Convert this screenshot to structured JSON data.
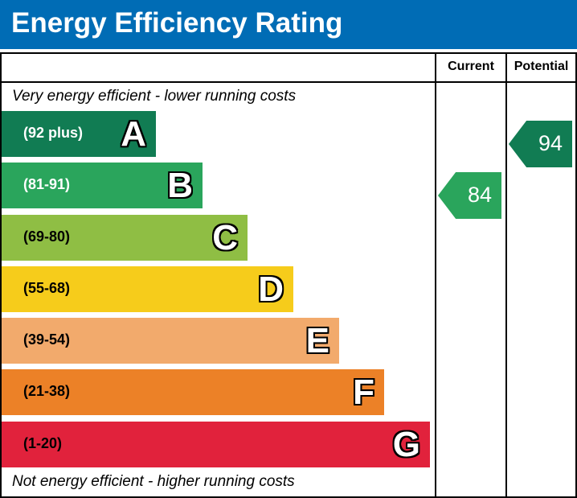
{
  "title": "Energy Efficiency Rating",
  "columns": {
    "current": "Current",
    "potential": "Potential"
  },
  "top_note": "Very energy efficient - lower running costs",
  "bottom_note": "Not energy efficient - higher running costs",
  "chart_data": {
    "type": "bar",
    "bands": [
      {
        "letter": "A",
        "range": "(92 plus)",
        "color": "#117c53",
        "text_color": "#ffffff"
      },
      {
        "letter": "B",
        "range": "(81-91)",
        "color": "#2aa55c",
        "text_color": "#ffffff"
      },
      {
        "letter": "C",
        "range": "(69-80)",
        "color": "#8fbe44",
        "text_color": "#000000"
      },
      {
        "letter": "D",
        "range": "(55-68)",
        "color": "#f6cc1b",
        "text_color": "#000000"
      },
      {
        "letter": "E",
        "range": "(39-54)",
        "color": "#f2aa6c",
        "text_color": "#000000"
      },
      {
        "letter": "F",
        "range": "(21-38)",
        "color": "#ec8127",
        "text_color": "#000000"
      },
      {
        "letter": "G",
        "range": "(1-20)",
        "color": "#e1223c",
        "text_color": "#000000"
      }
    ],
    "current": {
      "value": "84",
      "band": "B",
      "color": "#2aa55c"
    },
    "potential": {
      "value": "94",
      "band": "A",
      "color": "#117c53"
    }
  }
}
